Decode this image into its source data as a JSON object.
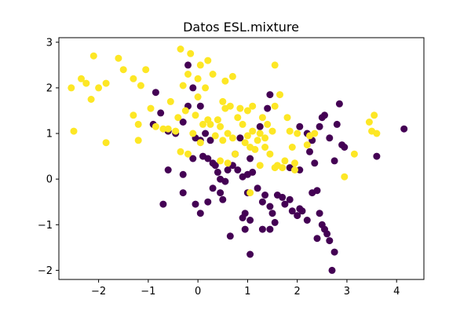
{
  "chart_data": {
    "type": "scatter",
    "title": "Datos ESL.mixture",
    "xlabel": "",
    "ylabel": "",
    "xlim": [
      -2.8,
      4.55
    ],
    "ylim": [
      -2.2,
      3.1
    ],
    "xticks": [
      -2,
      -1,
      0,
      1,
      2,
      3,
      4
    ],
    "xtick_labels": [
      "−2",
      "−1",
      "0",
      "1",
      "2",
      "3",
      "4"
    ],
    "yticks": [
      -2,
      -1,
      0,
      1,
      2,
      3
    ],
    "ytick_labels": [
      "−2",
      "−1",
      "0",
      "1",
      "2",
      "3"
    ],
    "grid": false,
    "colors": {
      "class_0": "#440154",
      "class_1": "#fde725"
    },
    "series": [
      {
        "class": 0,
        "color": "#440154",
        "points": [
          [
            -0.85,
            1.9
          ],
          [
            -0.75,
            1.45
          ],
          [
            -0.9,
            1.2
          ],
          [
            -0.6,
            1.05
          ],
          [
            -0.45,
            1.0
          ],
          [
            -0.3,
            1.25
          ],
          [
            -0.2,
            1.6
          ],
          [
            -0.1,
            2.0
          ],
          [
            -0.2,
            2.5
          ],
          [
            0.05,
            1.6
          ],
          [
            0.15,
            1.0
          ],
          [
            0.25,
            0.85
          ],
          [
            0.05,
            0.85
          ],
          [
            -0.05,
            0.9
          ],
          [
            -0.1,
            0.45
          ],
          [
            0.1,
            0.5
          ],
          [
            0.2,
            0.45
          ],
          [
            0.3,
            0.35
          ],
          [
            0.35,
            0.3
          ],
          [
            0.4,
            0.15
          ],
          [
            0.45,
            0.0
          ],
          [
            0.55,
            -0.05
          ],
          [
            0.6,
            0.2
          ],
          [
            0.7,
            0.3
          ],
          [
            0.8,
            0.2
          ],
          [
            0.9,
            0.05
          ],
          [
            1.0,
            0.1
          ],
          [
            1.05,
            0.45
          ],
          [
            1.1,
            0.15
          ],
          [
            1.0,
            -0.3
          ],
          [
            1.2,
            -0.2
          ],
          [
            1.3,
            -0.5
          ],
          [
            1.35,
            -0.35
          ],
          [
            1.45,
            -0.6
          ],
          [
            1.5,
            -0.75
          ],
          [
            1.55,
            -0.95
          ],
          [
            1.6,
            -0.35
          ],
          [
            1.7,
            -0.4
          ],
          [
            1.75,
            -0.55
          ],
          [
            1.85,
            -0.45
          ],
          [
            1.9,
            -0.7
          ],
          [
            2.0,
            -0.8
          ],
          [
            2.05,
            -0.65
          ],
          [
            2.1,
            -0.7
          ],
          [
            2.2,
            -0.9
          ],
          [
            2.3,
            -0.3
          ],
          [
            2.4,
            -0.25
          ],
          [
            2.45,
            -0.75
          ],
          [
            2.5,
            -1.0
          ],
          [
            2.55,
            -1.1
          ],
          [
            2.6,
            -1.2
          ],
          [
            2.65,
            -1.35
          ],
          [
            2.7,
            -2.0
          ],
          [
            2.75,
            -1.6
          ],
          [
            2.4,
            -1.3
          ],
          [
            1.45,
            -1.1
          ],
          [
            1.3,
            -1.1
          ],
          [
            1.05,
            -0.9
          ],
          [
            0.95,
            -1.1
          ],
          [
            0.9,
            -0.85
          ],
          [
            0.95,
            -0.75
          ],
          [
            0.65,
            -1.25
          ],
          [
            1.05,
            -1.65
          ],
          [
            0.3,
            -0.2
          ],
          [
            0.45,
            -0.3
          ],
          [
            0.5,
            -0.45
          ],
          [
            0.2,
            -0.5
          ],
          [
            -0.05,
            -0.55
          ],
          [
            0.05,
            -0.75
          ],
          [
            -0.3,
            -0.3
          ],
          [
            -0.7,
            -0.55
          ],
          [
            -0.6,
            0.2
          ],
          [
            -0.3,
            0.1
          ],
          [
            0.75,
            0.55
          ],
          [
            0.85,
            0.9
          ],
          [
            1.25,
            1.15
          ],
          [
            1.4,
            1.55
          ],
          [
            1.45,
            1.85
          ],
          [
            2.05,
            1.15
          ],
          [
            2.2,
            1.0
          ],
          [
            2.3,
            0.85
          ],
          [
            2.35,
            0.35
          ],
          [
            2.45,
            1.15
          ],
          [
            2.5,
            1.35
          ],
          [
            2.55,
            1.4
          ],
          [
            2.65,
            0.9
          ],
          [
            2.8,
            1.2
          ],
          [
            2.85,
            1.65
          ],
          [
            2.9,
            0.75
          ],
          [
            2.95,
            0.7
          ],
          [
            2.25,
            0.6
          ],
          [
            2.75,
            0.4
          ],
          [
            3.6,
            0.5
          ],
          [
            4.15,
            1.1
          ],
          [
            1.85,
            0.25
          ],
          [
            2.05,
            0.2
          ]
        ]
      },
      {
        "class": 1,
        "color": "#fde725",
        "points": [
          [
            -2.55,
            2.0
          ],
          [
            -2.5,
            1.05
          ],
          [
            -2.35,
            2.2
          ],
          [
            -2.25,
            2.1
          ],
          [
            -2.15,
            1.75
          ],
          [
            -2.1,
            2.7
          ],
          [
            -2.0,
            2.0
          ],
          [
            -1.85,
            0.8
          ],
          [
            -1.85,
            2.1
          ],
          [
            -1.6,
            2.65
          ],
          [
            -1.5,
            2.4
          ],
          [
            -1.3,
            2.2
          ],
          [
            -1.3,
            1.4
          ],
          [
            -1.2,
            1.2
          ],
          [
            -1.2,
            0.85
          ],
          [
            -1.15,
            2.05
          ],
          [
            -1.05,
            2.4
          ],
          [
            -0.95,
            1.55
          ],
          [
            -0.85,
            1.15
          ],
          [
            -0.7,
            1.1
          ],
          [
            -0.6,
            1.1
          ],
          [
            -0.55,
            1.7
          ],
          [
            -0.45,
            1.05
          ],
          [
            -0.4,
            1.35
          ],
          [
            -0.35,
            2.85
          ],
          [
            -0.35,
            0.6
          ],
          [
            -0.3,
            2.05
          ],
          [
            -0.25,
            1.5
          ],
          [
            -0.2,
            2.3
          ],
          [
            -0.2,
            0.55
          ],
          [
            -0.15,
            2.75
          ],
          [
            -0.1,
            1.0
          ],
          [
            -0.05,
            1.4
          ],
          [
            0.0,
            1.8
          ],
          [
            0.0,
            2.2
          ],
          [
            0.05,
            2.5
          ],
          [
            0.05,
            0.8
          ],
          [
            0.1,
            1.2
          ],
          [
            0.15,
            2.0
          ],
          [
            0.2,
            2.6
          ],
          [
            0.2,
            1.3
          ],
          [
            0.25,
            1.2
          ],
          [
            0.3,
            2.3
          ],
          [
            0.35,
            0.95
          ],
          [
            0.4,
            1.3
          ],
          [
            0.45,
            1.15
          ],
          [
            0.5,
            0.85
          ],
          [
            0.5,
            1.7
          ],
          [
            0.55,
            1.55
          ],
          [
            0.55,
            2.15
          ],
          [
            0.6,
            0.35
          ],
          [
            0.6,
            1.0
          ],
          [
            0.65,
            1.6
          ],
          [
            0.7,
            0.9
          ],
          [
            0.7,
            2.25
          ],
          [
            0.75,
            0.55
          ],
          [
            0.8,
            1.35
          ],
          [
            0.85,
            1.55
          ],
          [
            0.9,
            1.2
          ],
          [
            0.95,
            0.8
          ],
          [
            1.0,
            1.5
          ],
          [
            1.0,
            0.95
          ],
          [
            1.05,
            0.7
          ],
          [
            1.1,
            1.05
          ],
          [
            1.1,
            1.6
          ],
          [
            1.15,
            0.65
          ],
          [
            1.2,
            0.85
          ],
          [
            1.25,
            0.3
          ],
          [
            1.25,
            1.0
          ],
          [
            1.3,
            1.35
          ],
          [
            1.35,
            0.9
          ],
          [
            1.35,
            0.7
          ],
          [
            1.4,
            1.2
          ],
          [
            1.45,
            0.55
          ],
          [
            1.5,
            1.05
          ],
          [
            1.55,
            1.6
          ],
          [
            1.55,
            2.5
          ],
          [
            1.6,
            0.3
          ],
          [
            1.65,
            1.85
          ],
          [
            1.7,
            0.25
          ],
          [
            1.75,
            0.4
          ],
          [
            1.8,
            1.35
          ],
          [
            1.85,
            1.05
          ],
          [
            1.9,
            0.7
          ],
          [
            1.95,
            0.35
          ],
          [
            1.95,
            0.2
          ],
          [
            2.0,
            1.0
          ],
          [
            2.2,
            0.75
          ],
          [
            2.25,
            0.95
          ],
          [
            2.35,
            1.0
          ],
          [
            3.15,
            0.55
          ],
          [
            3.45,
            1.25
          ],
          [
            3.5,
            1.05
          ],
          [
            3.55,
            1.4
          ],
          [
            3.6,
            1.0
          ],
          [
            2.95,
            0.05
          ],
          [
            1.55,
            0.25
          ],
          [
            1.05,
            -0.3
          ],
          [
            0.45,
            0.4
          ]
        ]
      }
    ]
  }
}
